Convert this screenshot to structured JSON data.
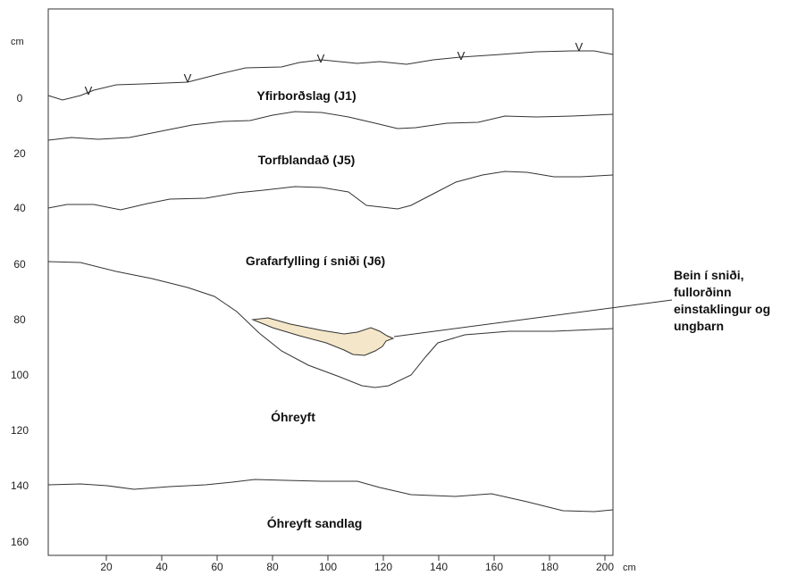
{
  "diagram": {
    "y_unit": "cm",
    "x_unit": "cm",
    "y_ticks": [
      "0",
      "20",
      "40",
      "60",
      "80",
      "100",
      "120",
      "140",
      "160"
    ],
    "x_ticks": [
      "20",
      "40",
      "60",
      "80",
      "100",
      "120",
      "140",
      "160",
      "180",
      "200"
    ],
    "surface_marker": "V",
    "layers": [
      {
        "id": "J1",
        "label": "Yfirborðslag (J1)"
      },
      {
        "id": "J5",
        "label": "Torfblandað (J5)"
      },
      {
        "id": "J6",
        "label": "Grafarfylling í sniði (J6)"
      },
      {
        "id": "undisturbed",
        "label": "Óhreyft"
      },
      {
        "id": "sand",
        "label": "Óhreyft sandlag"
      }
    ],
    "callout": {
      "lines": [
        "Bein í sniði,",
        "fullorðinn",
        "einstaklingur og",
        "ungbarn"
      ]
    },
    "colors": {
      "bone_fill": "#f4e6c8",
      "line": "#333333",
      "frame": "#333333"
    }
  }
}
